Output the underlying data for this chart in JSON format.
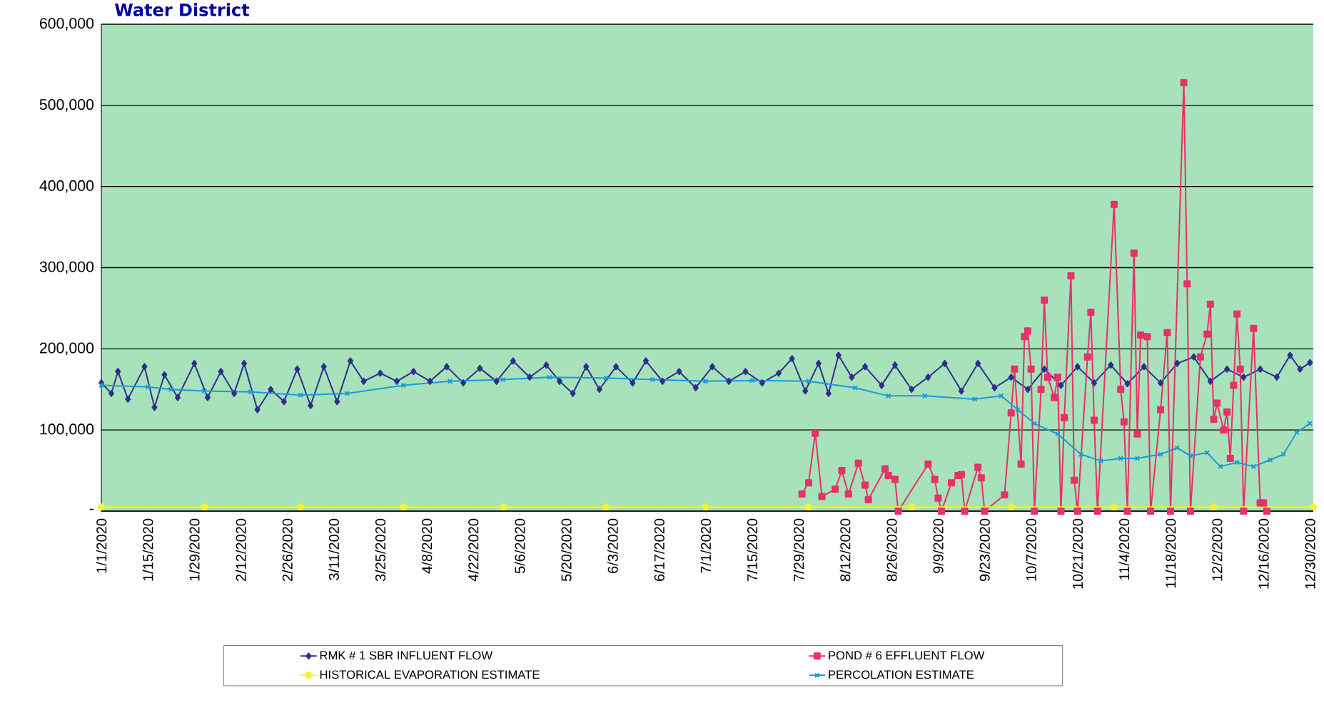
{
  "chart_data": {
    "type": "line",
    "title": "Water District",
    "xlim": [
      "2020-01-01",
      "2020-12-31"
    ],
    "xticks": [
      {
        "value": "2020-01-01",
        "label": "1/1/2020"
      },
      {
        "value": "2020-01-15",
        "label": "1/15/2020"
      },
      {
        "value": "2020-01-29",
        "label": "1/29/2020"
      },
      {
        "value": "2020-02-12",
        "label": "2/12/2020"
      },
      {
        "value": "2020-02-26",
        "label": "2/26/2020"
      },
      {
        "value": "2020-03-11",
        "label": "3/11/2020"
      },
      {
        "value": "2020-03-25",
        "label": "3/25/2020"
      },
      {
        "value": "2020-04-08",
        "label": "4/8/2020"
      },
      {
        "value": "2020-04-22",
        "label": "4/22/2020"
      },
      {
        "value": "2020-05-06",
        "label": "5/6/2020"
      },
      {
        "value": "2020-05-20",
        "label": "5/20/2020"
      },
      {
        "value": "2020-06-03",
        "label": "6/3/2020"
      },
      {
        "value": "2020-06-17",
        "label": "6/17/2020"
      },
      {
        "value": "2020-07-01",
        "label": "7/1/2020"
      },
      {
        "value": "2020-07-15",
        "label": "7/15/2020"
      },
      {
        "value": "2020-07-29",
        "label": "7/29/2020"
      },
      {
        "value": "2020-08-12",
        "label": "8/12/2020"
      },
      {
        "value": "2020-08-26",
        "label": "8/26/2020"
      },
      {
        "value": "2020-09-09",
        "label": "9/9/2020"
      },
      {
        "value": "2020-09-23",
        "label": "9/23/2020"
      },
      {
        "value": "2020-10-07",
        "label": "10/7/2020"
      },
      {
        "value": "2020-10-21",
        "label": "10/21/2020"
      },
      {
        "value": "2020-11-04",
        "label": "11/4/2020"
      },
      {
        "value": "2020-11-18",
        "label": "11/18/2020"
      },
      {
        "value": "2020-12-02",
        "label": "12/2/2020"
      },
      {
        "value": "2020-12-16",
        "label": "12/16/2020"
      },
      {
        "value": "2020-12-30",
        "label": "12/30/2020"
      }
    ],
    "ylim": [
      0,
      600000
    ],
    "yticks": [
      {
        "value": 0,
        "label": "-"
      },
      {
        "value": 100000,
        "label": "100,000"
      },
      {
        "value": 200000,
        "label": "200,000"
      },
      {
        "value": 300000,
        "label": "300,000"
      },
      {
        "value": 400000,
        "label": "400,000"
      },
      {
        "value": 500000,
        "label": "500,000"
      },
      {
        "value": 600000,
        "label": "600,000"
      }
    ],
    "grid": "y",
    "legend": "bottom",
    "series": [
      {
        "name": "RMK # 1 SBR INFLUENT FLOW",
        "color": "#2e2e8e",
        "marker": "diamond",
        "x": [
          "2020-01-01",
          "2020-01-04",
          "2020-01-06",
          "2020-01-09",
          "2020-01-14",
          "2020-01-17",
          "2020-01-20",
          "2020-01-24",
          "2020-01-29",
          "2020-02-02",
          "2020-02-06",
          "2020-02-10",
          "2020-02-13",
          "2020-02-17",
          "2020-02-21",
          "2020-02-25",
          "2020-02-29",
          "2020-03-04",
          "2020-03-08",
          "2020-03-12",
          "2020-03-16",
          "2020-03-20",
          "2020-03-25",
          "2020-03-30",
          "2020-04-04",
          "2020-04-09",
          "2020-04-14",
          "2020-04-19",
          "2020-04-24",
          "2020-04-29",
          "2020-05-04",
          "2020-05-09",
          "2020-05-14",
          "2020-05-18",
          "2020-05-22",
          "2020-05-26",
          "2020-05-30",
          "2020-06-04",
          "2020-06-09",
          "2020-06-13",
          "2020-06-18",
          "2020-06-23",
          "2020-06-28",
          "2020-07-03",
          "2020-07-08",
          "2020-07-13",
          "2020-07-18",
          "2020-07-23",
          "2020-07-27",
          "2020-07-31",
          "2020-08-04",
          "2020-08-07",
          "2020-08-10",
          "2020-08-14",
          "2020-08-18",
          "2020-08-23",
          "2020-08-27",
          "2020-09-01",
          "2020-09-06",
          "2020-09-11",
          "2020-09-16",
          "2020-09-21",
          "2020-09-26",
          "2020-10-01",
          "2020-10-06",
          "2020-10-11",
          "2020-10-16",
          "2020-10-21",
          "2020-10-26",
          "2020-10-31",
          "2020-11-05",
          "2020-11-10",
          "2020-11-15",
          "2020-11-20",
          "2020-11-25",
          "2020-11-30",
          "2020-12-05",
          "2020-12-10",
          "2020-12-15",
          "2020-12-20",
          "2020-12-24",
          "2020-12-27",
          "2020-12-30"
        ],
        "values": [
          158000,
          145000,
          172000,
          138000,
          178000,
          128000,
          168000,
          140000,
          182000,
          140000,
          172000,
          145000,
          182000,
          125000,
          150000,
          135000,
          175000,
          130000,
          178000,
          135000,
          185000,
          160000,
          170000,
          160000,
          172000,
          160000,
          178000,
          158000,
          176000,
          160000,
          185000,
          165000,
          180000,
          160000,
          145000,
          178000,
          150000,
          178000,
          158000,
          185000,
          160000,
          172000,
          152000,
          178000,
          160000,
          172000,
          158000,
          170000,
          188000,
          148000,
          182000,
          145000,
          192000,
          165000,
          178000,
          155000,
          180000,
          150000,
          165000,
          182000,
          148000,
          182000,
          152000,
          165000,
          150000,
          175000,
          155000,
          178000,
          158000,
          180000,
          157000,
          178000,
          158000,
          182000,
          190000,
          160000,
          175000,
          165000,
          175000,
          165000,
          192000,
          175000,
          183000
        ]
      },
      {
        "name": "POND # 6 EFFLUENT FLOW",
        "color": "#e8306a",
        "marker": "square",
        "x": [
          "2020-07-30",
          "2020-08-01",
          "2020-08-03",
          "2020-08-05",
          "2020-08-09",
          "2020-08-11",
          "2020-08-13",
          "2020-08-16",
          "2020-08-18",
          "2020-08-19",
          "2020-08-24",
          "2020-08-25",
          "2020-08-27",
          "2020-08-28",
          "2020-09-06",
          "2020-09-08",
          "2020-09-09",
          "2020-09-10",
          "2020-09-13",
          "2020-09-15",
          "2020-09-16",
          "2020-09-17",
          "2020-09-21",
          "2020-09-22",
          "2020-09-23",
          "2020-09-29",
          "2020-10-01",
          "2020-10-02",
          "2020-10-04",
          "2020-10-05",
          "2020-10-06",
          "2020-10-07",
          "2020-10-08",
          "2020-10-10",
          "2020-10-11",
          "2020-10-12",
          "2020-10-14",
          "2020-10-15",
          "2020-10-16",
          "2020-10-17",
          "2020-10-19",
          "2020-10-20",
          "2020-10-21",
          "2020-10-24",
          "2020-10-25",
          "2020-10-26",
          "2020-10-27",
          "2020-11-01",
          "2020-11-03",
          "2020-11-04",
          "2020-11-05",
          "2020-11-07",
          "2020-11-08",
          "2020-11-09",
          "2020-11-11",
          "2020-11-12",
          "2020-11-15",
          "2020-11-17",
          "2020-11-18",
          "2020-11-22",
          "2020-11-23",
          "2020-11-24",
          "2020-11-27",
          "2020-11-29",
          "2020-11-30",
          "2020-12-01",
          "2020-12-02",
          "2020-12-04",
          "2020-12-05",
          "2020-12-06",
          "2020-12-07",
          "2020-12-08",
          "2020-12-09",
          "2020-12-10",
          "2020-12-13",
          "2020-12-15",
          "2020-12-16",
          "2020-12-17"
        ],
        "values": [
          21000,
          35000,
          96000,
          18000,
          27000,
          50000,
          21000,
          59000,
          32000,
          14000,
          52000,
          44000,
          39000,
          0,
          58000,
          39000,
          16000,
          0,
          35000,
          44000,
          45000,
          0,
          54000,
          41000,
          0,
          20000,
          121000,
          175000,
          58000,
          215000,
          222000,
          175000,
          0,
          150000,
          260000,
          165000,
          140000,
          165000,
          0,
          115000,
          290000,
          38000,
          0,
          190000,
          245000,
          112000,
          0,
          378000,
          150000,
          110000,
          0,
          318000,
          95000,
          217000,
          215000,
          0,
          125000,
          220000,
          0,
          528000,
          280000,
          0,
          190000,
          218000,
          255000,
          113000,
          133000,
          100000,
          122000,
          65000,
          155000,
          243000,
          175000,
          0,
          225000,
          10000,
          10000,
          0
        ]
      },
      {
        "name": "HISTORICAL EVAPORATION ESTIMATE",
        "color": "#f2f23a",
        "marker": "circle",
        "x": [
          "2020-01-01",
          "2020-02-01",
          "2020-03-01",
          "2020-04-01",
          "2020-05-01",
          "2020-06-01",
          "2020-07-01",
          "2020-08-01",
          "2020-09-01",
          "2020-10-01",
          "2020-11-01",
          "2020-12-01",
          "2020-12-31"
        ],
        "values": [
          5000,
          5000,
          5000,
          5000,
          5000,
          5000,
          5000,
          5000,
          5000,
          5000,
          5000,
          5000,
          5000
        ]
      },
      {
        "name": "PERCOLATION ESTIMATE",
        "color": "#1a9ad8",
        "marker": "cross",
        "x": [
          "2020-01-01",
          "2020-01-15",
          "2020-01-22",
          "2020-02-01",
          "2020-02-15",
          "2020-03-01",
          "2020-03-15",
          "2020-04-01",
          "2020-04-15",
          "2020-05-01",
          "2020-05-15",
          "2020-06-01",
          "2020-06-15",
          "2020-07-01",
          "2020-07-15",
          "2020-08-01",
          "2020-08-15",
          "2020-08-25",
          "2020-09-05",
          "2020-09-20",
          "2020-09-28",
          "2020-10-03",
          "2020-10-08",
          "2020-10-15",
          "2020-10-22",
          "2020-10-28",
          "2020-11-03",
          "2020-11-08",
          "2020-11-15",
          "2020-11-20",
          "2020-11-24",
          "2020-11-29",
          "2020-12-03",
          "2020-12-08",
          "2020-12-13",
          "2020-12-18",
          "2020-12-22",
          "2020-12-26",
          "2020-12-30"
        ],
        "values": [
          155000,
          153000,
          150000,
          148000,
          147000,
          143000,
          145000,
          155000,
          160000,
          162000,
          165000,
          164000,
          162000,
          160000,
          161000,
          160000,
          152000,
          142000,
          142000,
          138000,
          142000,
          125000,
          108000,
          95000,
          70000,
          62000,
          65000,
          65000,
          70000,
          78000,
          68000,
          72000,
          55000,
          60000,
          55000,
          63000,
          70000,
          97000,
          108000
        ]
      }
    ]
  }
}
